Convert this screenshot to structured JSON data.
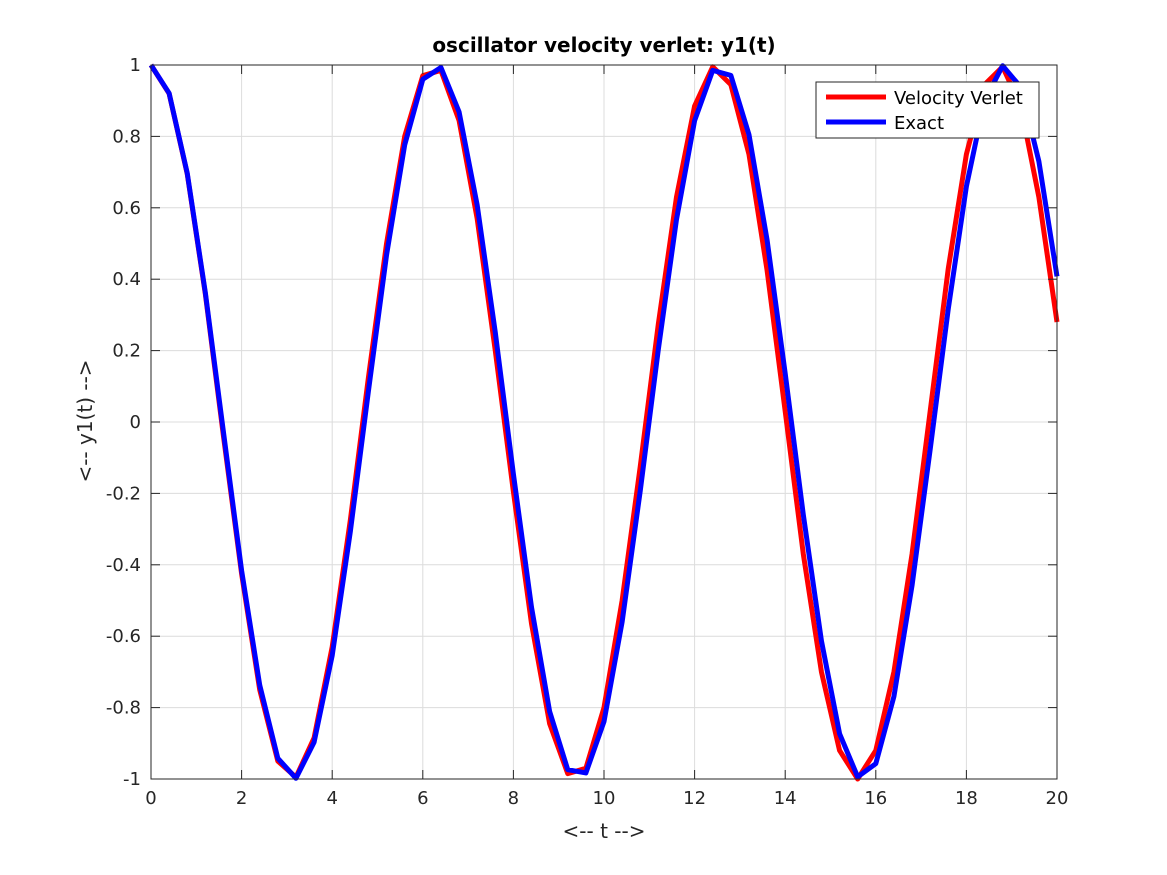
{
  "chart_data": {
    "type": "line",
    "title": "oscillator velocity verlet: y1(t)",
    "xlabel": "<-- t -->",
    "ylabel": "<-- y1(t) -->",
    "xlim": [
      0,
      20
    ],
    "ylim": [
      -1,
      1
    ],
    "xticks": [
      0,
      2,
      4,
      6,
      8,
      10,
      12,
      14,
      16,
      18,
      20
    ],
    "xtick_labels": [
      "0",
      "2",
      "4",
      "6",
      "8",
      "10",
      "12",
      "14",
      "16",
      "18",
      "20"
    ],
    "yticks": [
      -1,
      -0.8,
      -0.6,
      -0.4,
      -0.2,
      0,
      0.2,
      0.4,
      0.6,
      0.8,
      1
    ],
    "ytick_labels": [
      "-1",
      "-0.8",
      "-0.6",
      "-0.4",
      "-0.2",
      "0",
      "0.2",
      "0.4",
      "0.6",
      "0.8",
      "1"
    ],
    "grid": true,
    "legend_position": "top-right",
    "x": [
      0,
      0.4,
      0.8,
      1.2,
      1.6,
      2.0,
      2.4,
      2.8,
      3.2,
      3.6,
      4.0,
      4.4,
      4.8,
      5.2,
      5.6,
      6.0,
      6.4,
      6.8,
      7.2,
      7.6,
      8.0,
      8.4,
      8.8,
      9.2,
      9.6,
      10.0,
      10.4,
      10.8,
      11.2,
      11.6,
      12.0,
      12.4,
      12.8,
      13.2,
      13.6,
      14.0,
      14.4,
      14.8,
      15.2,
      15.6,
      16.0,
      16.4,
      16.8,
      17.2,
      17.6,
      18.0,
      18.4,
      18.8,
      19.2,
      19.6,
      20.0
    ],
    "series": [
      {
        "name": "Velocity Verlet",
        "color": "#ff0000",
        "values": [
          1.0,
          0.92,
          0.695,
          0.358,
          -0.04,
          -0.425,
          -0.75,
          -0.95,
          -0.995,
          -0.885,
          -0.63,
          -0.275,
          0.125,
          0.5,
          0.8,
          0.97,
          0.985,
          0.845,
          0.57,
          0.2,
          -0.195,
          -0.565,
          -0.845,
          -0.985,
          -0.97,
          -0.8,
          -0.5,
          -0.125,
          0.275,
          0.63,
          0.885,
          0.995,
          0.945,
          0.75,
          0.425,
          0.03,
          -0.37,
          -0.7,
          -0.92,
          -1.0,
          -0.92,
          -0.7,
          -0.37,
          0.03,
          0.43,
          0.75,
          0.945,
          0.995,
          0.885,
          0.63,
          0.28
        ]
      },
      {
        "name": "Exact",
        "color": "#0000ff",
        "values": [
          1.0,
          0.921,
          0.697,
          0.362,
          -0.029,
          -0.416,
          -0.737,
          -0.942,
          -0.998,
          -0.897,
          -0.654,
          -0.307,
          0.087,
          0.468,
          0.776,
          0.96,
          0.993,
          0.869,
          0.608,
          0.251,
          -0.146,
          -0.519,
          -0.811,
          -0.974,
          -0.983,
          -0.839,
          -0.56,
          -0.193,
          0.204,
          0.567,
          0.844,
          0.985,
          0.971,
          0.805,
          0.51,
          0.136,
          -0.26,
          -0.613,
          -0.873,
          -0.994,
          -0.957,
          -0.769,
          -0.458,
          -0.077,
          0.317,
          0.66,
          0.9,
          0.998,
          0.938,
          0.73,
          0.408
        ]
      }
    ]
  }
}
